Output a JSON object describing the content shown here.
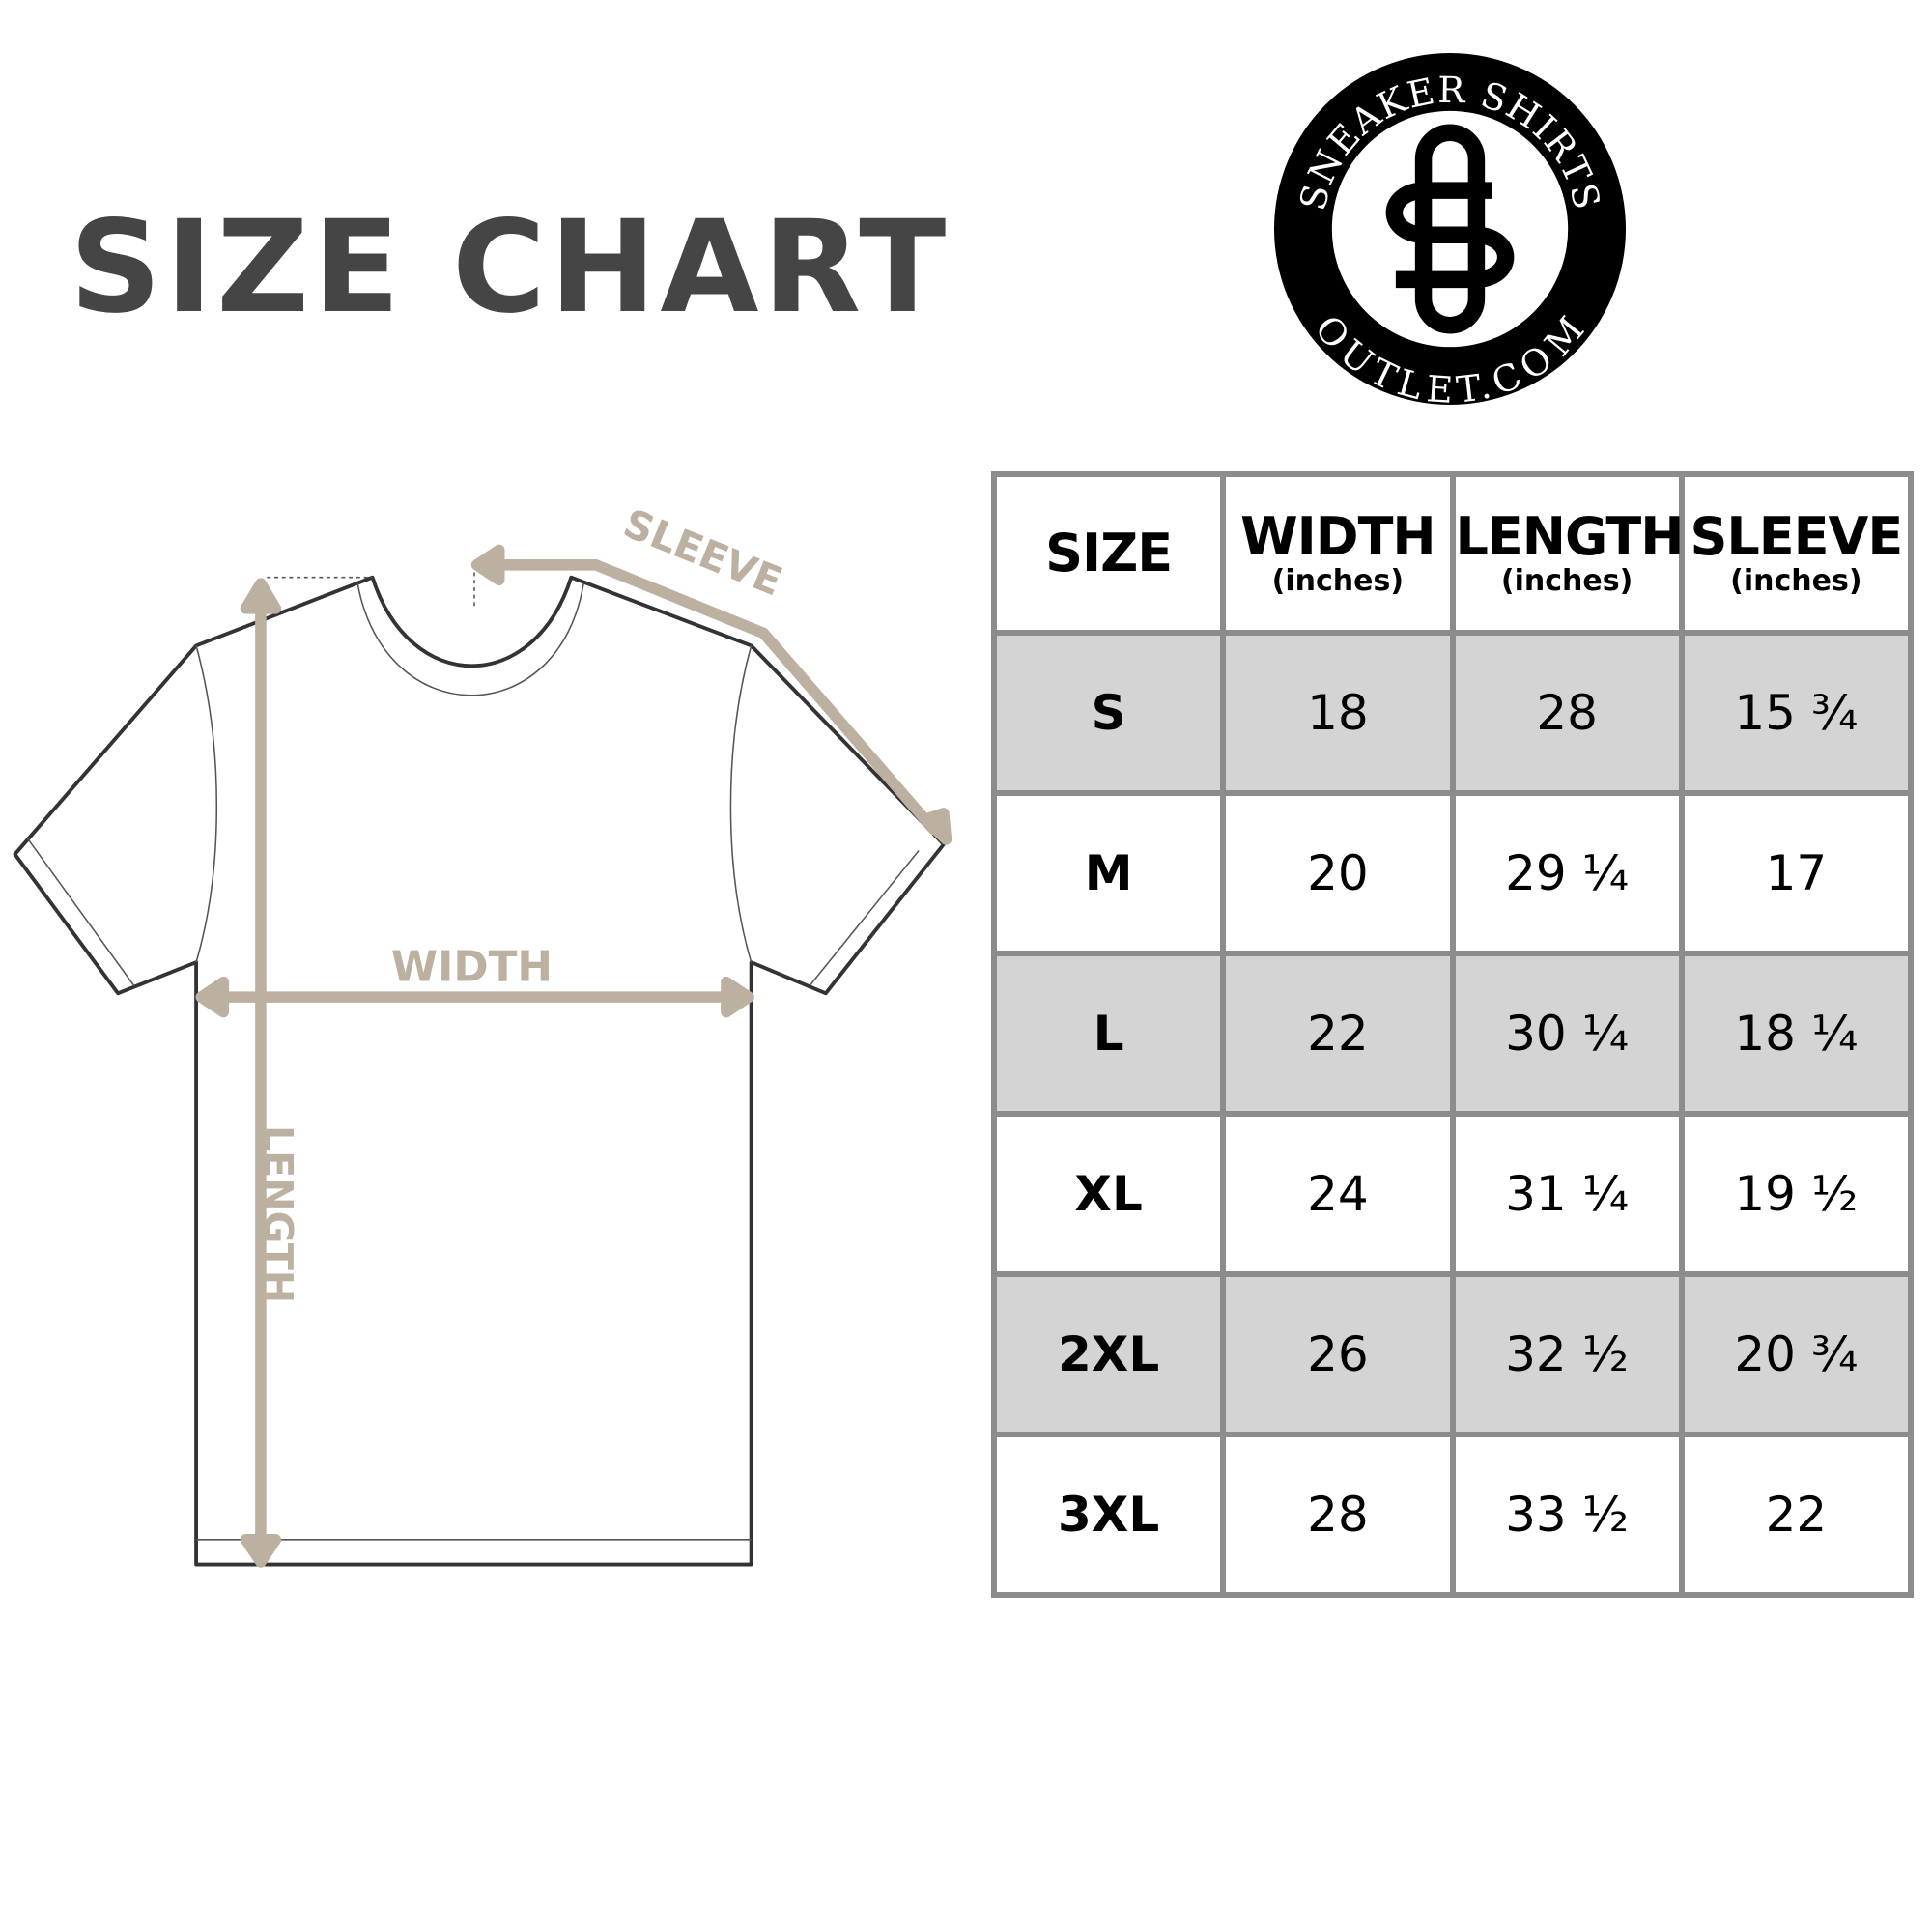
{
  "title": "SIZE CHART",
  "logo": {
    "top_text": "SNEAKER SHIRTS",
    "bottom_text": "OUTLET.COM",
    "monogram": "SO"
  },
  "diagram": {
    "labels": {
      "sleeve": "SLEEVE",
      "width": "WIDTH",
      "length": "LENGTH"
    },
    "arrow_color": "#bcb1a1",
    "outline_color": "#333333"
  },
  "table": {
    "headers": [
      {
        "label": "SIZE",
        "unit": ""
      },
      {
        "label": "WIDTH",
        "unit": "(inches)"
      },
      {
        "label": "LENGTH",
        "unit": "(inches)"
      },
      {
        "label": "SLEEVE",
        "unit": "(inches)"
      }
    ],
    "rows": [
      [
        "S",
        "18",
        "28",
        "15 ¾"
      ],
      [
        "M",
        "20",
        "29 ¼",
        "17"
      ],
      [
        "L",
        "22",
        "30 ¼",
        "18 ¼"
      ],
      [
        "XL",
        "24",
        "31 ¼",
        "19 ½"
      ],
      [
        "2XL",
        "26",
        "32 ½",
        "20 ¾"
      ],
      [
        "3XL",
        "28",
        "33 ½",
        "22"
      ]
    ],
    "shade_color": "#d4d4d4",
    "border_color": "#8c8c8c"
  }
}
